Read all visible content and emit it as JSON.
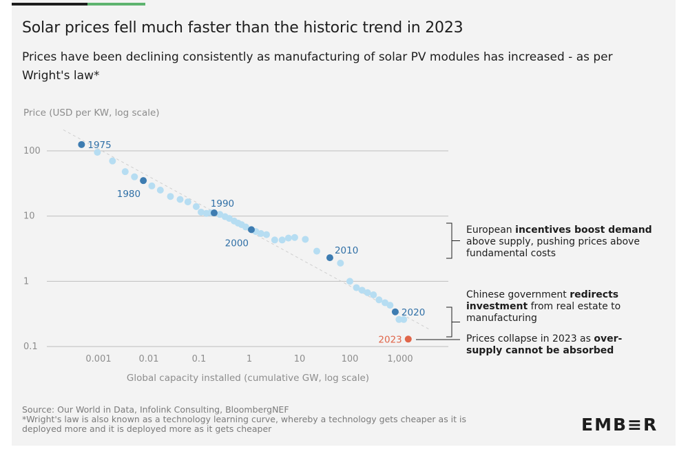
{
  "colors": {
    "accent_dark": "#1d1d1d",
    "accent_green": "#5eb36f",
    "point_light": "#b6ddf2",
    "point_highlight": "#3d7cb1",
    "point_2023": "#e0664a",
    "label_blue": "#2f6fa6",
    "trend_line": "#cfcfcf",
    "grid": "#bdbdbd",
    "axis_text": "#8c8c8c"
  },
  "header": {
    "title": "Solar prices fell much faster than the historic trend in 2023",
    "subtitle": "Prices have been declining consistently as manufacturing of solar PV modules has increased - as per Wright's law*"
  },
  "chart_data": {
    "type": "scatter",
    "x_scale": "log",
    "y_scale": "log",
    "ylabel": "Price (USD per KW, log scale)",
    "xlabel": "Global capacity installed (cumulative GW, log scale)",
    "x_ticks": [
      {
        "value": 0.001,
        "label": "0.001"
      },
      {
        "value": 0.01,
        "label": "0.01"
      },
      {
        "value": 0.1,
        "label": "0.1"
      },
      {
        "value": 1,
        "label": "1"
      },
      {
        "value": 10,
        "label": "10"
      },
      {
        "value": 100,
        "label": "100"
      },
      {
        "value": 1000,
        "label": "1,000"
      }
    ],
    "y_ticks": [
      {
        "value": 100,
        "label": "100"
      },
      {
        "value": 10,
        "label": "10"
      },
      {
        "value": 1,
        "label": "1"
      },
      {
        "value": 0.1,
        "label": "0.1"
      }
    ],
    "xlim": [
      0.00012,
      8000
    ],
    "ylim": [
      0.1,
      520
    ],
    "grid": true,
    "trend_line": {
      "from": [
        0.0002,
        210
      ],
      "to": [
        4000,
        0.18
      ]
    },
    "points": [
      {
        "x": 0.00046,
        "y": 125,
        "highlight": true,
        "label": "1975",
        "label_pos": "right"
      },
      {
        "x": 0.00095,
        "y": 95
      },
      {
        "x": 0.0019,
        "y": 70
      },
      {
        "x": 0.0034,
        "y": 48
      },
      {
        "x": 0.0052,
        "y": 40
      },
      {
        "x": 0.0078,
        "y": 35,
        "highlight": true,
        "label": "1980",
        "label_pos": "below-left"
      },
      {
        "x": 0.0115,
        "y": 29
      },
      {
        "x": 0.017,
        "y": 25
      },
      {
        "x": 0.027,
        "y": 20
      },
      {
        "x": 0.042,
        "y": 18
      },
      {
        "x": 0.06,
        "y": 16.5
      },
      {
        "x": 0.088,
        "y": 14
      },
      {
        "x": 0.11,
        "y": 11.5
      },
      {
        "x": 0.14,
        "y": 11
      },
      {
        "x": 0.17,
        "y": 11.2
      },
      {
        "x": 0.2,
        "y": 11.2,
        "highlight": true,
        "label": "1990",
        "label_pos": "above"
      },
      {
        "x": 0.26,
        "y": 10.6
      },
      {
        "x": 0.33,
        "y": 9.8
      },
      {
        "x": 0.4,
        "y": 9.2
      },
      {
        "x": 0.5,
        "y": 8.4
      },
      {
        "x": 0.6,
        "y": 7.8
      },
      {
        "x": 0.7,
        "y": 7.4
      },
      {
        "x": 0.85,
        "y": 6.8
      },
      {
        "x": 1.1,
        "y": 6.2,
        "highlight": true,
        "label": "2000",
        "label_pos": "below-left"
      },
      {
        "x": 1.35,
        "y": 5.8
      },
      {
        "x": 1.7,
        "y": 5.4
      },
      {
        "x": 2.2,
        "y": 5.2
      },
      {
        "x": 3.2,
        "y": 4.3
      },
      {
        "x": 4.5,
        "y": 4.3
      },
      {
        "x": 6,
        "y": 4.6
      },
      {
        "x": 8,
        "y": 4.7
      },
      {
        "x": 13,
        "y": 4.4
      },
      {
        "x": 22,
        "y": 2.9
      },
      {
        "x": 40,
        "y": 2.3,
        "highlight": true,
        "label": "2010",
        "label_pos": "above-right"
      },
      {
        "x": 65,
        "y": 1.9
      },
      {
        "x": 100,
        "y": 1.0
      },
      {
        "x": 135,
        "y": 0.8
      },
      {
        "x": 175,
        "y": 0.73
      },
      {
        "x": 225,
        "y": 0.67
      },
      {
        "x": 295,
        "y": 0.62
      },
      {
        "x": 380,
        "y": 0.52
      },
      {
        "x": 500,
        "y": 0.47
      },
      {
        "x": 630,
        "y": 0.43
      },
      {
        "x": 800,
        "y": 0.34,
        "highlight": true,
        "label": "2020",
        "label_pos": "right"
      },
      {
        "x": 950,
        "y": 0.26
      },
      {
        "x": 1180,
        "y": 0.26
      },
      {
        "x": 1450,
        "y": 0.13,
        "special": true,
        "label": "2023",
        "label_pos": "left"
      }
    ]
  },
  "annotations": [
    {
      "line1": [
        "European ",
        "incentives boost demand"
      ],
      "line2": [
        "above supply, pushing prices above",
        ""
      ],
      "line3": [
        "fundamental costs",
        ""
      ]
    },
    {
      "line1": [
        "Chinese government ",
        "redirects"
      ],
      "line2": [
        "",
        "investment",
        " from real estate to"
      ],
      "line3": [
        "manufacturing",
        ""
      ]
    },
    {
      "line1": [
        "Prices collapse in 2023 as ",
        "over-"
      ],
      "line2": [
        "",
        "supply cannot be absorbed"
      ]
    }
  ],
  "footer": {
    "source": "Source: Our World in Data, Infolink Consulting, BloombergNEF",
    "note_line1": "*Wright's law is also known as a technology learning curve, whereby a technology gets cheaper as it is",
    "note_line2": "deployed more and it is deployed more as it gets cheaper",
    "logo": "EMB≡R"
  }
}
